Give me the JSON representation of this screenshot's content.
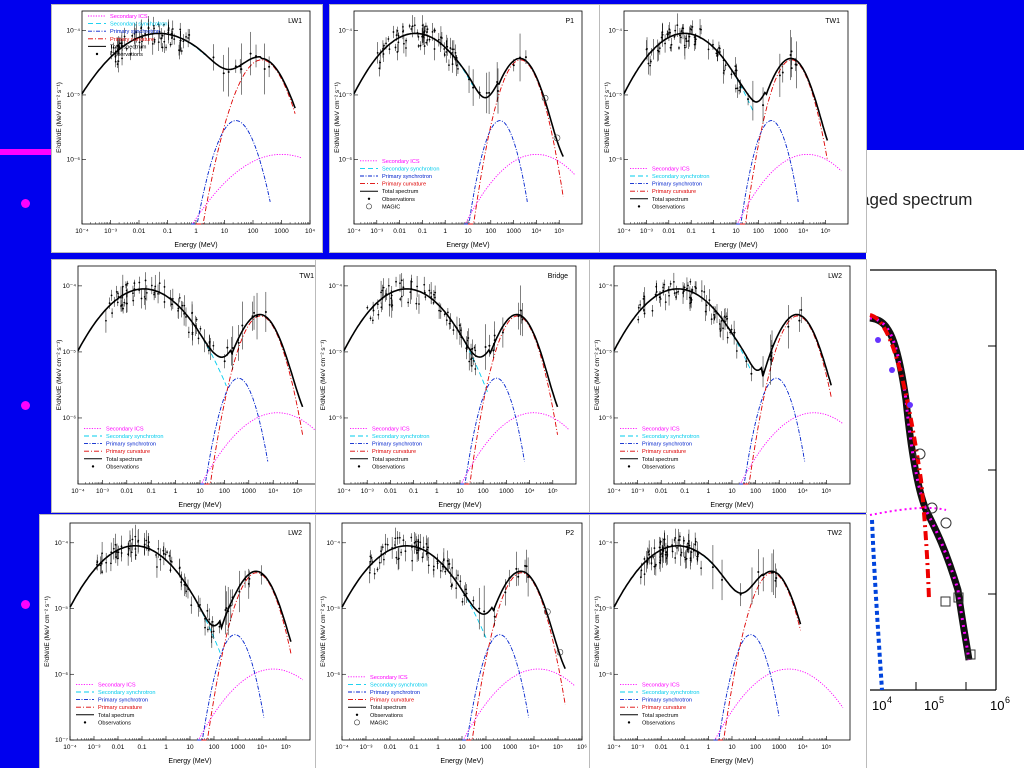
{
  "theme": {
    "background": "#0000ee",
    "bullet": "#ff00ff",
    "panel": "#ffffff"
  },
  "background_slide": {
    "title_fragment": "aged spectrum",
    "xticks": [
      "10",
      "4",
      "10",
      "5",
      "10",
      "6"
    ]
  },
  "chart_data": [
    {
      "type": "line",
      "title": "LW1",
      "xlabel": "Energy (MeV)",
      "ylabel": "E²dN/dE (MeV cm⁻² s⁻¹)",
      "xscale": "log",
      "yscale": "log",
      "xlim": [
        0.0001,
        10000
      ],
      "ylim": [
        1e-07,
        0.0002
      ],
      "xticks": [
        "10⁻⁴",
        "10⁻³",
        "0.01",
        "0.1",
        "1",
        "10",
        "100",
        "1000",
        "10⁴"
      ],
      "yticks": [
        "10⁻⁴",
        "10⁻⁵",
        "10⁻⁶"
      ],
      "legend": [
        "Secondary ICS",
        "Secondary synchrotron",
        "Primary synchrotron",
        "Primary curvature",
        "Total spectrum",
        "Observations"
      ],
      "legend_pos": "top-left"
    },
    {
      "type": "line",
      "title": "P1",
      "xlabel": "Energy (MeV)",
      "ylabel": "E²dN/dE (MeV cm⁻² s⁻¹)",
      "xscale": "log",
      "yscale": "log",
      "xlim": [
        0.0001,
        1000000
      ],
      "ylim": [
        1e-07,
        0.0002
      ],
      "xticks": [
        "10⁻⁴",
        "10⁻³",
        "0.01",
        "0.1",
        "1",
        "10",
        "100",
        "1000",
        "10⁴",
        "10⁵"
      ],
      "yticks": [
        "10⁻⁴",
        "10⁻⁵",
        "10⁻⁶"
      ],
      "legend": [
        "Secondary ICS",
        "Secondary synchrotron",
        "Primary synchrotron",
        "Primary curvature",
        "Total spectrum",
        "Observations",
        "MAGIC"
      ],
      "legend_pos": "bottom-left"
    },
    {
      "type": "line",
      "title": "TW1",
      "xlabel": "Energy (MeV)",
      "ylabel": "E²dN/dE (MeV cm⁻² s⁻¹)",
      "xscale": "log",
      "yscale": "log",
      "xlim": [
        0.0001,
        1000000
      ],
      "ylim": [
        1e-07,
        0.0002
      ],
      "xticks": [
        "10⁻⁴",
        "10⁻³",
        "0.01",
        "0.1",
        "1",
        "10",
        "100",
        "1000",
        "10⁴",
        "10⁵"
      ],
      "yticks": [
        "10⁻⁴",
        "10⁻⁵",
        "10⁻⁶"
      ],
      "legend": [
        "Secondary ICS",
        "Secondary synchrotron",
        "Primary synchrotron",
        "Primary curvature",
        "Total spectrum",
        "Observations"
      ],
      "legend_pos": "bottom-left"
    },
    {
      "type": "line",
      "title": "TW1",
      "xlabel": "Energy (MeV)",
      "ylabel": "E²dN/dE (MeV cm⁻² s⁻¹)",
      "xscale": "log",
      "yscale": "log",
      "xlim": [
        0.0001,
        1000000
      ],
      "ylim": [
        1e-07,
        0.0002
      ],
      "xticks": [
        "10⁻⁴",
        "10⁻³",
        "0.01",
        "0.1",
        "1",
        "10",
        "100",
        "1000",
        "10⁴",
        "10⁵"
      ],
      "yticks": [
        "10⁻⁴",
        "10⁻⁵",
        "10⁻⁶"
      ],
      "legend": [
        "Secondary ICS",
        "Secondary synchrotron",
        "Primary synchrotron",
        "Primary curvature",
        "Total spectrum",
        "Observations"
      ],
      "legend_pos": "bottom-left"
    },
    {
      "type": "line",
      "title": "Bridge",
      "xlabel": "Energy (MeV)",
      "ylabel": "E²dN/dE (MeV cm⁻² s⁻¹)",
      "xscale": "log",
      "yscale": "log",
      "xlim": [
        0.0001,
        1000000
      ],
      "ylim": [
        1e-07,
        0.0002
      ],
      "xticks": [
        "10⁻⁴",
        "10⁻³",
        "0.01",
        "0.1",
        "1",
        "10",
        "100",
        "1000",
        "10⁴",
        "10⁵"
      ],
      "yticks": [
        "10⁻⁴",
        "10⁻⁵",
        "10⁻⁶"
      ],
      "legend": [
        "Secondary ICS",
        "Secondary synchrotron",
        "Primary synchrotron",
        "Primary curvature",
        "Total spectrum",
        "Observations"
      ],
      "legend_pos": "bottom-left"
    },
    {
      "type": "line",
      "title": "LW2",
      "xlabel": "Energy (MeV)",
      "ylabel": "E²dN/dE (MeV cm⁻² s⁻¹)",
      "xscale": "log",
      "yscale": "log",
      "xlim": [
        0.0001,
        1000000
      ],
      "ylim": [
        1e-07,
        0.0002
      ],
      "xticks": [
        "10⁻⁴",
        "10⁻³",
        "0.01",
        "0.1",
        "1",
        "10",
        "100",
        "1000",
        "10⁴",
        "10⁵"
      ],
      "yticks": [
        "10⁻⁴",
        "10⁻⁵",
        "10⁻⁶"
      ],
      "legend": [
        "Secondary ICS",
        "Secondary synchrotron",
        "Primary synchrotron",
        "Primary curvature",
        "Total spectrum",
        "Observations"
      ],
      "legend_pos": "bottom-left"
    },
    {
      "type": "line",
      "title": "LW2",
      "xlabel": "Energy (MeV)",
      "ylabel": "E²dN/dE (MeV cm⁻² s⁻¹)",
      "xscale": "log",
      "yscale": "log",
      "xlim": [
        0.0001,
        1000000
      ],
      "ylim": [
        1e-07,
        0.0002
      ],
      "xticks": [
        "10⁻⁴",
        "10⁻³",
        "0.01",
        "0.1",
        "1",
        "10",
        "100",
        "1000",
        "10⁴",
        "10⁵"
      ],
      "yticks": [
        "10⁻⁴",
        "10⁻⁵",
        "10⁻⁶",
        "10⁻⁷"
      ],
      "legend": [
        "Secondary ICS",
        "Secondary synchrotron",
        "Primary synchrotron",
        "Primary curvature",
        "Total spectrum",
        "Observations"
      ],
      "legend_pos": "bottom-left"
    },
    {
      "type": "line",
      "title": "P2",
      "xlabel": "Energy (MeV)",
      "ylabel": "E²dN/dE (MeV cm⁻² s⁻¹)",
      "xscale": "log",
      "yscale": "log",
      "xlim": [
        0.0001,
        1000000
      ],
      "ylim": [
        1e-07,
        0.0002
      ],
      "xticks": [
        "10⁻⁴",
        "10⁻³",
        "0.01",
        "0.1",
        "1",
        "10",
        "100",
        "1000",
        "10⁴",
        "10⁵",
        "10⁶"
      ],
      "yticks": [
        "10⁻⁴",
        "10⁻⁵",
        "10⁻⁶"
      ],
      "legend": [
        "Secondary ICS",
        "Secondary synchrotron",
        "Primary synchrotron",
        "Primary curvature",
        "Total spectrum",
        "Observations",
        "MAGIC"
      ],
      "legend_pos": "bottom-left"
    },
    {
      "type": "line",
      "title": "TW2",
      "xlabel": "Energy (MeV)",
      "ylabel": "E²dN/dE (MeV cm⁻² s⁻¹)",
      "xscale": "log",
      "yscale": "log",
      "xlim": [
        0.0001,
        1000000
      ],
      "ylim": [
        1e-07,
        0.0002
      ],
      "xticks": [
        "10⁻⁴",
        "10⁻³",
        "0.01",
        "0.1",
        "1",
        "10",
        "100",
        "1000",
        "10⁴",
        "10⁵"
      ],
      "yticks": [
        "10⁻⁴",
        "10⁻⁵",
        "10⁻⁶"
      ],
      "legend": [
        "Secondary ICS",
        "Secondary synchrotron",
        "Primary synchrotron",
        "Primary curvature",
        "Total spectrum",
        "Observations"
      ],
      "legend_pos": "bottom-left"
    }
  ]
}
